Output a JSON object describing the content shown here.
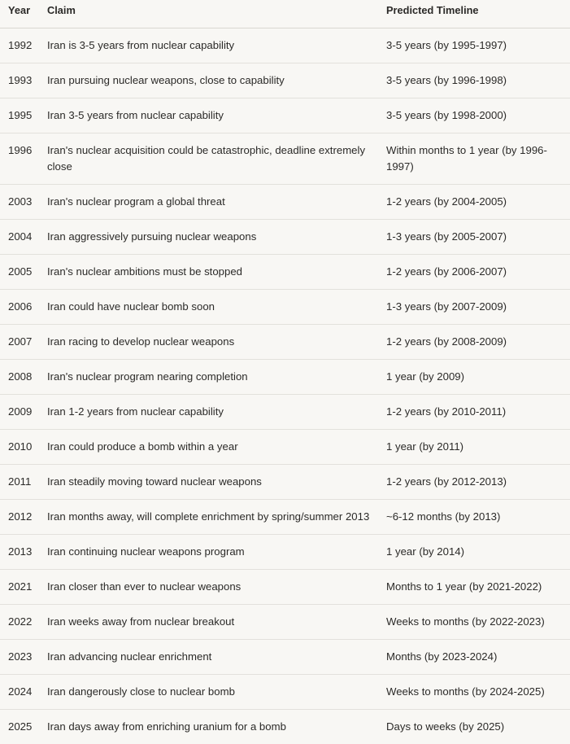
{
  "table": {
    "headers": {
      "year": "Year",
      "claim": "Claim",
      "timeline": "Predicted Timeline"
    },
    "rows": [
      {
        "year": "1992",
        "claim": "Iran is 3-5 years from nuclear capability",
        "timeline": "3-5 years (by 1995-1997)"
      },
      {
        "year": "1993",
        "claim": "Iran pursuing nuclear weapons, close to capability",
        "timeline": "3-5 years (by 1996-1998)"
      },
      {
        "year": "1995",
        "claim": "Iran 3-5 years from nuclear capability",
        "timeline": "3-5 years (by 1998-2000)"
      },
      {
        "year": "1996",
        "claim": "Iran's nuclear acquisition could be catastrophic, deadline extremely close",
        "timeline": "Within months to 1 year (by 1996-1997)"
      },
      {
        "year": "2003",
        "claim": "Iran's nuclear program a global threat",
        "timeline": "1-2 years (by 2004-2005)"
      },
      {
        "year": "2004",
        "claim": "Iran aggressively pursuing nuclear weapons",
        "timeline": "1-3 years (by 2005-2007)"
      },
      {
        "year": "2005",
        "claim": "Iran's nuclear ambitions must be stopped",
        "timeline": "1-2 years (by 2006-2007)"
      },
      {
        "year": "2006",
        "claim": "Iran could have nuclear bomb soon",
        "timeline": "1-3 years (by 2007-2009)"
      },
      {
        "year": "2007",
        "claim": "Iran racing to develop nuclear weapons",
        "timeline": "1-2 years (by 2008-2009)"
      },
      {
        "year": "2008",
        "claim": "Iran's nuclear program nearing completion",
        "timeline": "1 year (by 2009)"
      },
      {
        "year": "2009",
        "claim": "Iran 1-2 years from nuclear capability",
        "timeline": "1-2 years (by 2010-2011)"
      },
      {
        "year": "2010",
        "claim": "Iran could produce a bomb within a year",
        "timeline": "1 year (by 2011)"
      },
      {
        "year": "2011",
        "claim": "Iran steadily moving toward nuclear weapons",
        "timeline": "1-2 years (by 2012-2013)"
      },
      {
        "year": "2012",
        "claim": "Iran months away, will complete enrichment by spring/summer 2013",
        "timeline": "~6-12 months (by 2013)"
      },
      {
        "year": "2013",
        "claim": "Iran continuing nuclear weapons program",
        "timeline": "1 year (by 2014)"
      },
      {
        "year": "2021",
        "claim": "Iran closer than ever to nuclear weapons",
        "timeline": "Months to 1 year (by 2021-2022)"
      },
      {
        "year": "2022",
        "claim": "Iran weeks away from nuclear breakout",
        "timeline": "Weeks to months (by 2022-2023)"
      },
      {
        "year": "2023",
        "claim": "Iran advancing nuclear enrichment",
        "timeline": "Months (by 2023-2024)"
      },
      {
        "year": "2024",
        "claim": "Iran dangerously close to nuclear bomb",
        "timeline": "Weeks to months (by 2024-2025)"
      },
      {
        "year": "2025",
        "claim": "Iran days away from enriching uranium for a bomb",
        "timeline": "Days to weeks (by 2025)"
      }
    ]
  }
}
